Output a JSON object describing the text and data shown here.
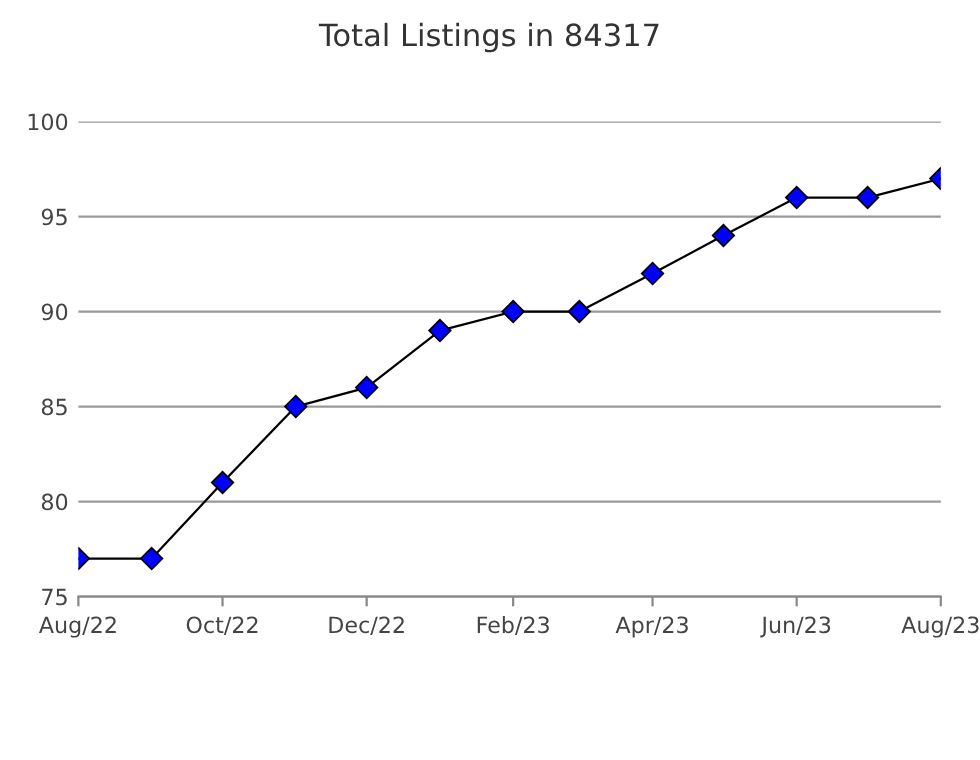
{
  "chart_data": {
    "type": "line",
    "title": "Total Listings in 84317",
    "x": [
      "2022-08",
      "2022-09",
      "2022-10",
      "2022-11",
      "2022-12",
      "2023-01",
      "2023-02",
      "2023-03",
      "2023-04",
      "2023-05",
      "2023-06",
      "2023-07",
      "2023-08"
    ],
    "series": [
      {
        "color": "#0000ff",
        "values": [
          77,
          77,
          81,
          85,
          86,
          89,
          90,
          90,
          92,
          94,
          96,
          96,
          97
        ]
      }
    ],
    "xlim": [
      "2022-08",
      "2023-08"
    ],
    "xticks": [
      {
        "value": "2022-08",
        "label": "Aug/22"
      },
      {
        "value": "2022-10",
        "label": "Oct/22"
      },
      {
        "value": "2022-12",
        "label": "Dec/22"
      },
      {
        "value": "2023-02",
        "label": "Feb/23"
      },
      {
        "value": "2023-04",
        "label": "Apr/23"
      },
      {
        "value": "2023-06",
        "label": "Jun/23"
      },
      {
        "value": "2023-08",
        "label": "Aug/23"
      }
    ],
    "ylim": [
      75,
      100
    ],
    "yticks": [
      75,
      80,
      85,
      90,
      95,
      100
    ],
    "grid": "y",
    "marker": "diamond",
    "line_style": "solid"
  }
}
